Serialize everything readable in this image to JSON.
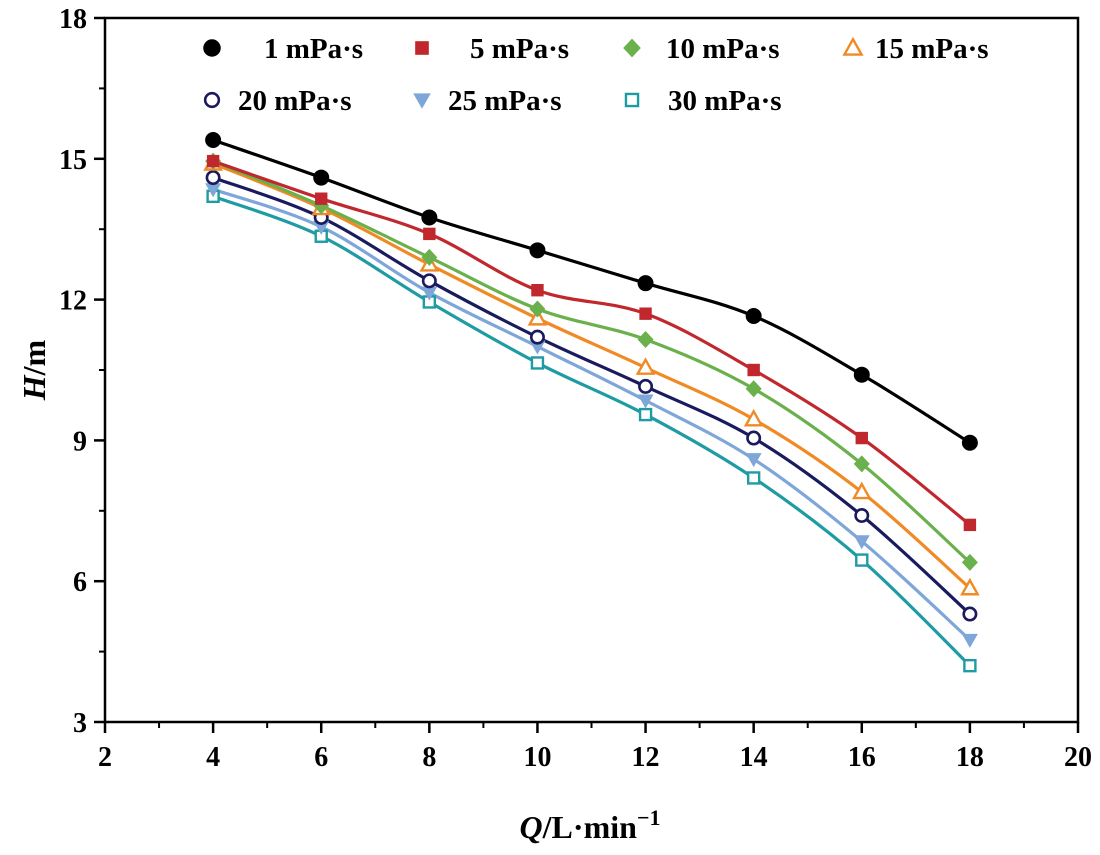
{
  "chart_data": {
    "type": "line",
    "title": "",
    "xlabel": {
      "var": "Q",
      "unit": "/L·min",
      "exp": "−1"
    },
    "ylabel": {
      "var": "H",
      "unit": "/m"
    },
    "xlim": [
      2,
      20
    ],
    "ylim": [
      3,
      18
    ],
    "xticks": [
      2,
      4,
      6,
      8,
      10,
      12,
      14,
      16,
      18,
      20
    ],
    "yticks": [
      3,
      6,
      9,
      12,
      15,
      18
    ],
    "grid": false,
    "legend_position": "top",
    "x": [
      4,
      6,
      8,
      10,
      12,
      14,
      16,
      18
    ],
    "series": [
      {
        "name": "1 mPa·s",
        "marker": "circle-filled",
        "color": "#000000",
        "values": [
          15.4,
          14.6,
          13.75,
          13.05,
          12.35,
          11.65,
          10.4,
          8.95
        ]
      },
      {
        "name": "5 mPa·s",
        "marker": "square-filled",
        "color": "#c0282d",
        "values": [
          14.95,
          14.15,
          13.4,
          12.2,
          11.7,
          10.5,
          9.05,
          7.2
        ]
      },
      {
        "name": "10 mPa·s",
        "marker": "diamond-filled",
        "color": "#6ab04c",
        "values": [
          14.95,
          14.0,
          12.9,
          11.8,
          11.15,
          10.1,
          8.5,
          6.4
        ]
      },
      {
        "name": "15 mPa·s",
        "marker": "triangle-open",
        "color": "#f08a24",
        "values": [
          14.9,
          13.95,
          12.75,
          11.6,
          10.55,
          9.45,
          7.9,
          5.85
        ]
      },
      {
        "name": "20 mPa·s",
        "marker": "circle-open",
        "color": "#1a1a5e",
        "values": [
          14.6,
          13.75,
          12.4,
          11.2,
          10.15,
          9.05,
          7.4,
          5.3
        ]
      },
      {
        "name": "25 mPa·s",
        "marker": "triangle-down-filled",
        "color": "#7ea6d8",
        "values": [
          14.35,
          13.55,
          12.15,
          11.0,
          9.85,
          8.6,
          6.85,
          4.75
        ]
      },
      {
        "name": "30 mPa·s",
        "marker": "square-open",
        "color": "#1e9ba3",
        "values": [
          14.2,
          13.35,
          11.95,
          10.65,
          9.55,
          8.2,
          6.45,
          4.2
        ]
      }
    ]
  }
}
